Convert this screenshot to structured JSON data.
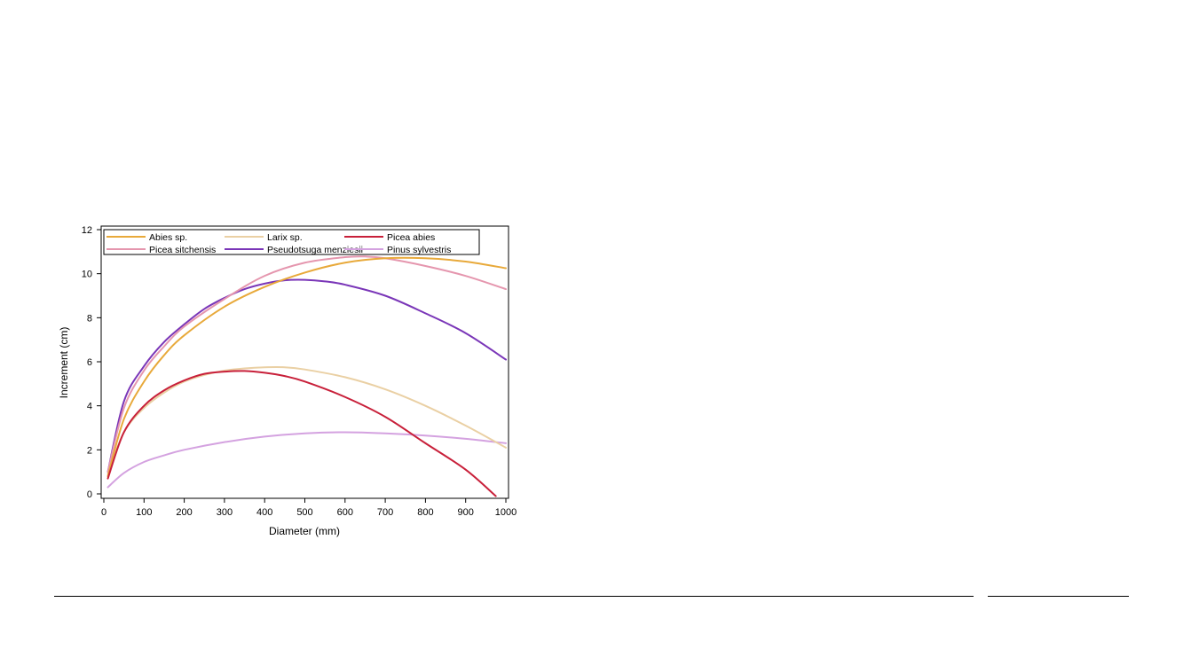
{
  "chart_data": {
    "type": "line",
    "xlabel": "Diameter (mm)",
    "ylabel": "Increment (cm)",
    "xlim": [
      0,
      1000
    ],
    "ylim": [
      0,
      12
    ],
    "xticks": [
      "0",
      "100",
      "200",
      "300",
      "400",
      "500",
      "600",
      "700",
      "800",
      "900",
      "1000"
    ],
    "yticks": [
      "0",
      "2",
      "4",
      "6",
      "8",
      "10",
      "12"
    ],
    "grid": false,
    "legend_position": "top, inside plot",
    "series": [
      {
        "name": "Abies sp.",
        "color": "#e8a93a",
        "x": [
          10,
          50,
          100,
          150,
          200,
          300,
          400,
          500,
          600,
          700,
          800,
          900,
          1000
        ],
        "y": [
          0.8,
          3.4,
          5.1,
          6.3,
          7.2,
          8.5,
          9.4,
          10.05,
          10.5,
          10.7,
          10.7,
          10.55,
          10.25
        ]
      },
      {
        "name": "Larix sp.",
        "color": "#ead0a4",
        "x": [
          10,
          50,
          100,
          150,
          200,
          250,
          300,
          350,
          400,
          450,
          500,
          600,
          700,
          800,
          900,
          1000
        ],
        "y": [
          0.9,
          2.8,
          3.9,
          4.6,
          5.1,
          5.4,
          5.6,
          5.7,
          5.75,
          5.75,
          5.65,
          5.3,
          4.75,
          4.0,
          3.1,
          2.1
        ]
      },
      {
        "name": "Picea abies",
        "color": "#c8203a",
        "x": [
          10,
          50,
          100,
          150,
          200,
          250,
          300,
          350,
          400,
          450,
          500,
          600,
          700,
          800,
          900,
          975
        ],
        "y": [
          0.7,
          2.8,
          4.0,
          4.7,
          5.15,
          5.45,
          5.55,
          5.58,
          5.5,
          5.35,
          5.1,
          4.4,
          3.5,
          2.3,
          1.1,
          -0.1
        ]
      },
      {
        "name": "Picea sitchensis",
        "color": "#e596ae",
        "x": [
          10,
          50,
          100,
          150,
          200,
          300,
          400,
          500,
          600,
          650,
          700,
          800,
          900,
          1000
        ],
        "y": [
          1.0,
          3.9,
          5.6,
          6.7,
          7.6,
          8.85,
          9.9,
          10.5,
          10.75,
          10.78,
          10.7,
          10.35,
          9.9,
          9.3
        ]
      },
      {
        "name": "Pseudotsuga menziesii",
        "color": "#7a36b8",
        "x": [
          10,
          50,
          100,
          150,
          200,
          250,
          300,
          350,
          400,
          450,
          500,
          550,
          600,
          700,
          800,
          900,
          1000
        ],
        "y": [
          1.0,
          4.2,
          5.8,
          6.9,
          7.7,
          8.4,
          8.9,
          9.3,
          9.55,
          9.7,
          9.72,
          9.65,
          9.5,
          9.0,
          8.2,
          7.3,
          6.1
        ]
      },
      {
        "name": "Pinus sylvestris",
        "color": "#d4a2e0",
        "x": [
          10,
          50,
          100,
          150,
          200,
          300,
          400,
          500,
          600,
          700,
          800,
          900,
          1000
        ],
        "y": [
          0.3,
          0.95,
          1.45,
          1.75,
          2.0,
          2.35,
          2.6,
          2.75,
          2.8,
          2.75,
          2.65,
          2.5,
          2.3
        ]
      }
    ]
  }
}
